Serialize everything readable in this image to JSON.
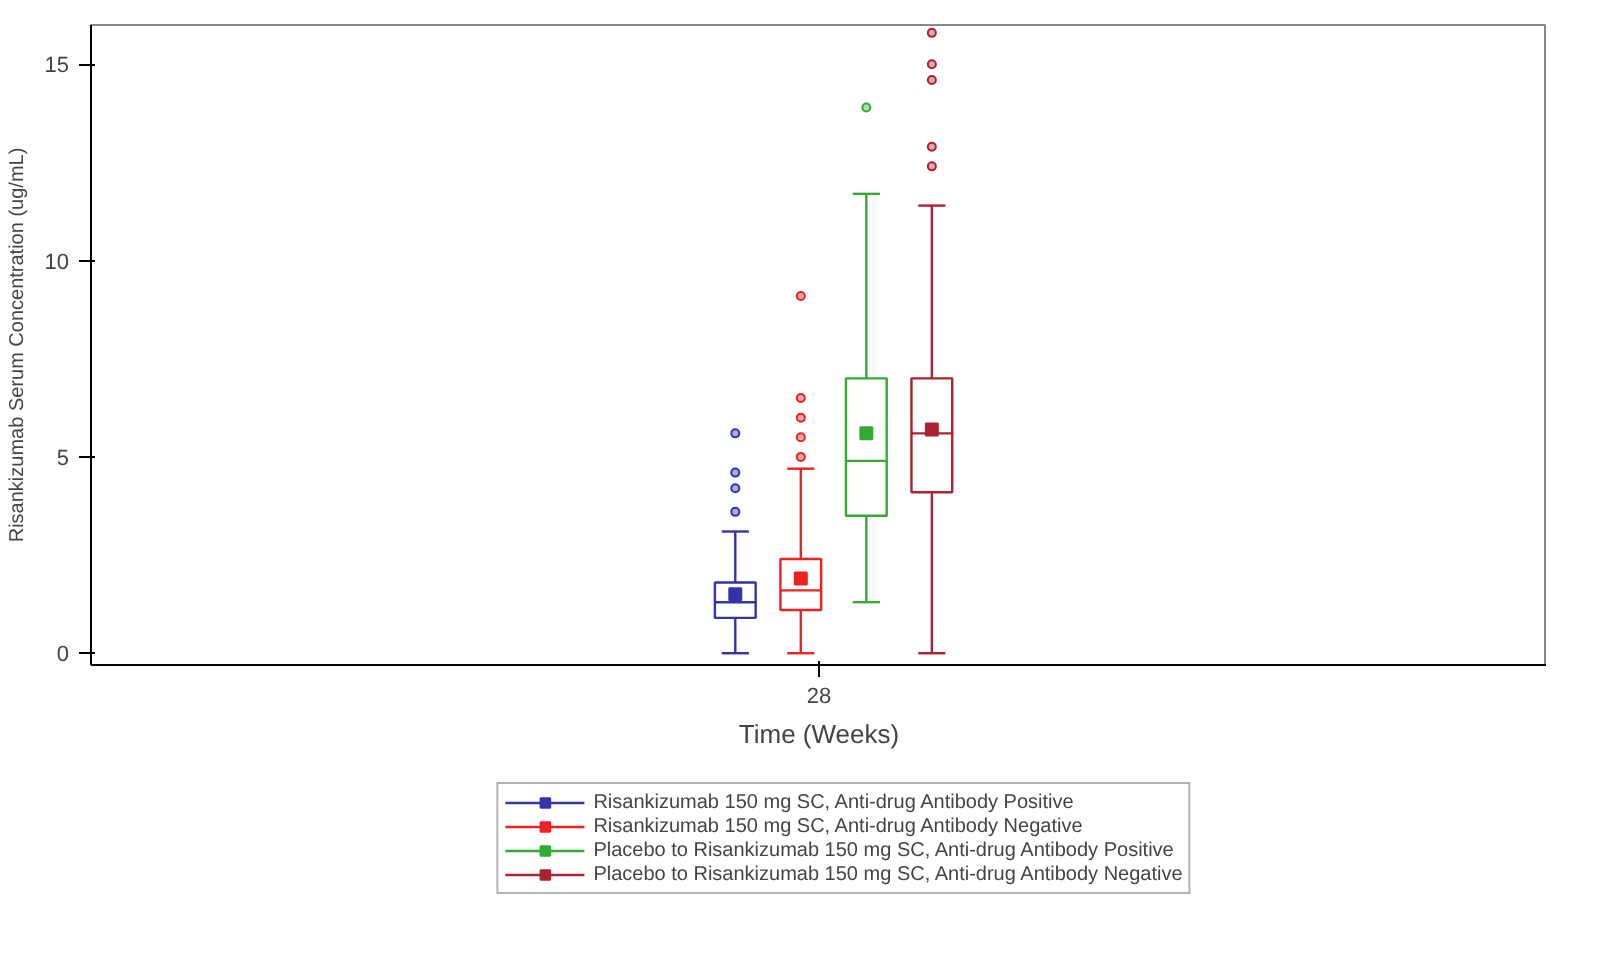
{
  "chart_data": {
    "type": "box",
    "xlabel": "Time (Weeks)",
    "ylabel": "Risankizumab Serum Concentration (ug/mL)",
    "categories": [
      "28"
    ],
    "ylim": [
      -0.3,
      16
    ],
    "yticks": [
      0,
      5,
      10,
      15
    ],
    "grid": false,
    "legend": "bottom",
    "marker": "square",
    "series": [
      {
        "name": "Risankizumab 150 mg SC, Anti-drug Antibody Positive",
        "color": "#3333aa",
        "boxes": [
          {
            "low": 0,
            "q1": 0.9,
            "median": 1.3,
            "q3": 1.8,
            "high": 3.1,
            "mean": 1.5,
            "outliers": [
              3.6,
              4.2,
              4.6,
              5.6
            ]
          }
        ]
      },
      {
        "name": "Risankizumab 150 mg SC, Anti-drug Antibody Negative",
        "color": "#ee2222",
        "boxes": [
          {
            "low": 0,
            "q1": 1.1,
            "median": 1.6,
            "q3": 2.4,
            "high": 4.7,
            "mean": 1.9,
            "outliers": [
              5.0,
              5.5,
              6.0,
              6.5,
              9.1
            ]
          }
        ]
      },
      {
        "name": "Placebo to Risankizumab 150 mg SC, Anti-drug Antibody Positive",
        "color": "#33aa33",
        "boxes": [
          {
            "low": 1.3,
            "q1": 3.5,
            "median": 4.9,
            "q3": 7.0,
            "high": 11.7,
            "mean": 5.6,
            "outliers": [
              13.9
            ]
          }
        ]
      },
      {
        "name": "Placebo to Risankizumab 150 mg SC, Anti-drug Antibody Negative",
        "color": "#aa2233",
        "boxes": [
          {
            "low": 0,
            "q1": 4.1,
            "median": 5.6,
            "q3": 7.0,
            "high": 11.4,
            "mean": 5.7,
            "outliers": [
              12.4,
              12.9,
              14.6,
              15.0,
              15.8
            ]
          }
        ]
      }
    ]
  }
}
